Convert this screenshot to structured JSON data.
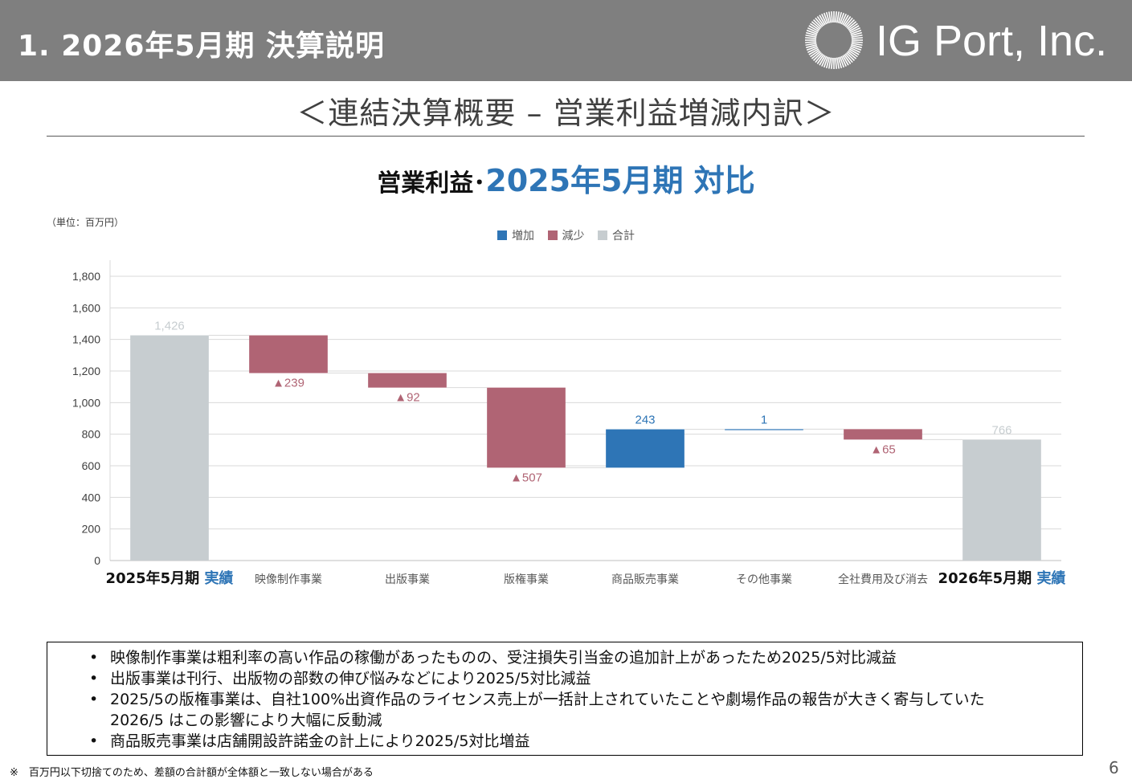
{
  "header": {
    "title": "1. 2026年5月期 決算説明",
    "logo_text": "IG Port, Inc."
  },
  "subtitle": "＜連結決算概要 – 営業利益増減内訳＞",
  "chart_title": {
    "prefix": "営業利益･",
    "highlight": "2025年5月期 対比"
  },
  "unit_label": "（単位：百万円）",
  "chart_data": {
    "type": "bar",
    "subtype": "waterfall",
    "ylim": [
      0,
      1800
    ],
    "yticks": [
      0,
      200,
      400,
      600,
      800,
      1000,
      1200,
      1400,
      1600,
      1800
    ],
    "ytick_labels": [
      "0",
      "200",
      "400",
      "600",
      "800",
      "1,000",
      "1,200",
      "1,400",
      "1,600",
      "1,800"
    ],
    "grid": true,
    "legend_position": "top-center",
    "legend": [
      {
        "label": "増加",
        "color": "#2e75b6"
      },
      {
        "label": "減少",
        "color": "#b06474"
      },
      {
        "label": "合計",
        "color": "#c7cdd0"
      }
    ],
    "categories": [
      {
        "prefix": "2025年5月期",
        "suffix": "実績",
        "emphasis": true
      },
      {
        "prefix": "映像制作事業",
        "suffix": "",
        "emphasis": false
      },
      {
        "prefix": "出版事業",
        "suffix": "",
        "emphasis": false
      },
      {
        "prefix": "版権事業",
        "suffix": "",
        "emphasis": false
      },
      {
        "prefix": "商品販売事業",
        "suffix": "",
        "emphasis": false
      },
      {
        "prefix": "その他事業",
        "suffix": "",
        "emphasis": false
      },
      {
        "prefix": "全社費用及び消去",
        "suffix": "",
        "emphasis": false
      },
      {
        "prefix": "2026年5月期",
        "suffix": "実績",
        "emphasis": true
      }
    ],
    "bars": [
      {
        "kind": "total",
        "start": 0,
        "end": 1426,
        "label": "1,426"
      },
      {
        "kind": "decrease",
        "start": 1426,
        "end": 1187,
        "label": "▲239"
      },
      {
        "kind": "decrease",
        "start": 1187,
        "end": 1095,
        "label": "▲92"
      },
      {
        "kind": "decrease",
        "start": 1095,
        "end": 588,
        "label": "▲507"
      },
      {
        "kind": "increase",
        "start": 588,
        "end": 831,
        "label": "243"
      },
      {
        "kind": "increase",
        "start": 831,
        "end": 832,
        "label": "1"
      },
      {
        "kind": "decrease",
        "start": 832,
        "end": 766,
        "label": "▲65"
      },
      {
        "kind": "total",
        "start": 0,
        "end": 766,
        "label": "766"
      }
    ]
  },
  "notes": [
    "映像制作事業は粗利率の高い作品の稼働があったものの、受注損失引当金の追加計上があったため2025/5対比減益",
    "出版事業は刊行、出版物の部数の伸び悩みなどにより2025/5対比減益",
    "2025/5の版権事業は、自社100%出資作品のライセンス売上が一括計上されていたことや劇場作品の報告が大きく寄与していた",
    "2026/5 はこの影響により大幅に反動減",
    "商品販売事業は店舗開設許諾金の計上により2025/5対比増益"
  ],
  "footnote": "※　百万円以下切捨てのため、差額の合計額が全体額と一致しない場合がある",
  "page_number": "6"
}
